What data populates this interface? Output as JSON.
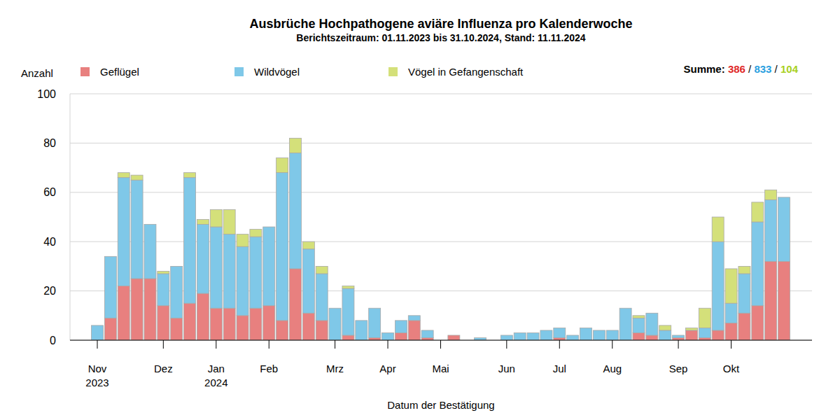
{
  "chart_data": {
    "type": "bar",
    "stacked": true,
    "grid": true,
    "legend": "top",
    "title": "Ausbrüche Hochpathogene aviäre Influenza pro Kalenderwoche",
    "subtitle": "Berichtszeitraum: 01.11.2023 bis 31.10.2024, Stand: 11.11.2024",
    "y_label": "Anzahl",
    "x_label": "Datum der Bestätigung",
    "totals": {
      "label": "Summe:",
      "separator": "/",
      "values": [
        386,
        833,
        104
      ],
      "colors": [
        "#e02828",
        "#2aa0e0",
        "#a8d01e"
      ]
    },
    "categories": [
      "Nov 2023",
      null,
      null,
      null,
      null,
      "Dez",
      null,
      null,
      null,
      "Jan 2024",
      null,
      null,
      null,
      "Feb",
      null,
      null,
      null,
      null,
      "Mrz",
      null,
      null,
      null,
      "Apr",
      null,
      null,
      null,
      "Mai",
      null,
      null,
      null,
      null,
      "Jun",
      null,
      null,
      null,
      "Jul",
      null,
      null,
      null,
      "Aug",
      null,
      null,
      null,
      null,
      "Sep",
      null,
      null,
      null,
      "Okt",
      null,
      null,
      null,
      null
    ],
    "series": [
      {
        "name": "Geflügel",
        "color": "#e8807f",
        "values": [
          0,
          9,
          22,
          25,
          25,
          14,
          9,
          15,
          19,
          13,
          13,
          10,
          13,
          14,
          8,
          29,
          11,
          8,
          0,
          2,
          0,
          1,
          0,
          3,
          8,
          1,
          0,
          2,
          0,
          0,
          0,
          0,
          0,
          0,
          0,
          1,
          0,
          0,
          0,
          0,
          0,
          3,
          2,
          0,
          1,
          4,
          1,
          4,
          7,
          11,
          14,
          32,
          32
        ]
      },
      {
        "name": "Wildvögel",
        "color": "#7fc8e8",
        "values": [
          6,
          25,
          44,
          40,
          22,
          13,
          21,
          51,
          28,
          33,
          30,
          28,
          29,
          32,
          60,
          47,
          26,
          19,
          13,
          19,
          8,
          12,
          3,
          5,
          2,
          3,
          0,
          0,
          0,
          1,
          0,
          2,
          3,
          3,
          4,
          4,
          2,
          5,
          4,
          4,
          13,
          6,
          9,
          4,
          1,
          0,
          4,
          36,
          8,
          16,
          34,
          25,
          26
        ]
      },
      {
        "name": "Vögel in Gefangenschaft",
        "color": "#d4e07a",
        "values": [
          0,
          0,
          2,
          2,
          0,
          1,
          0,
          2,
          2,
          7,
          10,
          5,
          3,
          0,
          6,
          6,
          3,
          3,
          0,
          1,
          0,
          0,
          0,
          0,
          0,
          0,
          0,
          0,
          0,
          0,
          0,
          0,
          0,
          0,
          0,
          0,
          0,
          0,
          0,
          0,
          0,
          1,
          0,
          2,
          0,
          1,
          8,
          10,
          14,
          3,
          8,
          4,
          0
        ]
      }
    ],
    "ylim": [
      0,
      100
    ],
    "yticks": [
      0,
      20,
      40,
      60,
      80,
      100
    ]
  }
}
